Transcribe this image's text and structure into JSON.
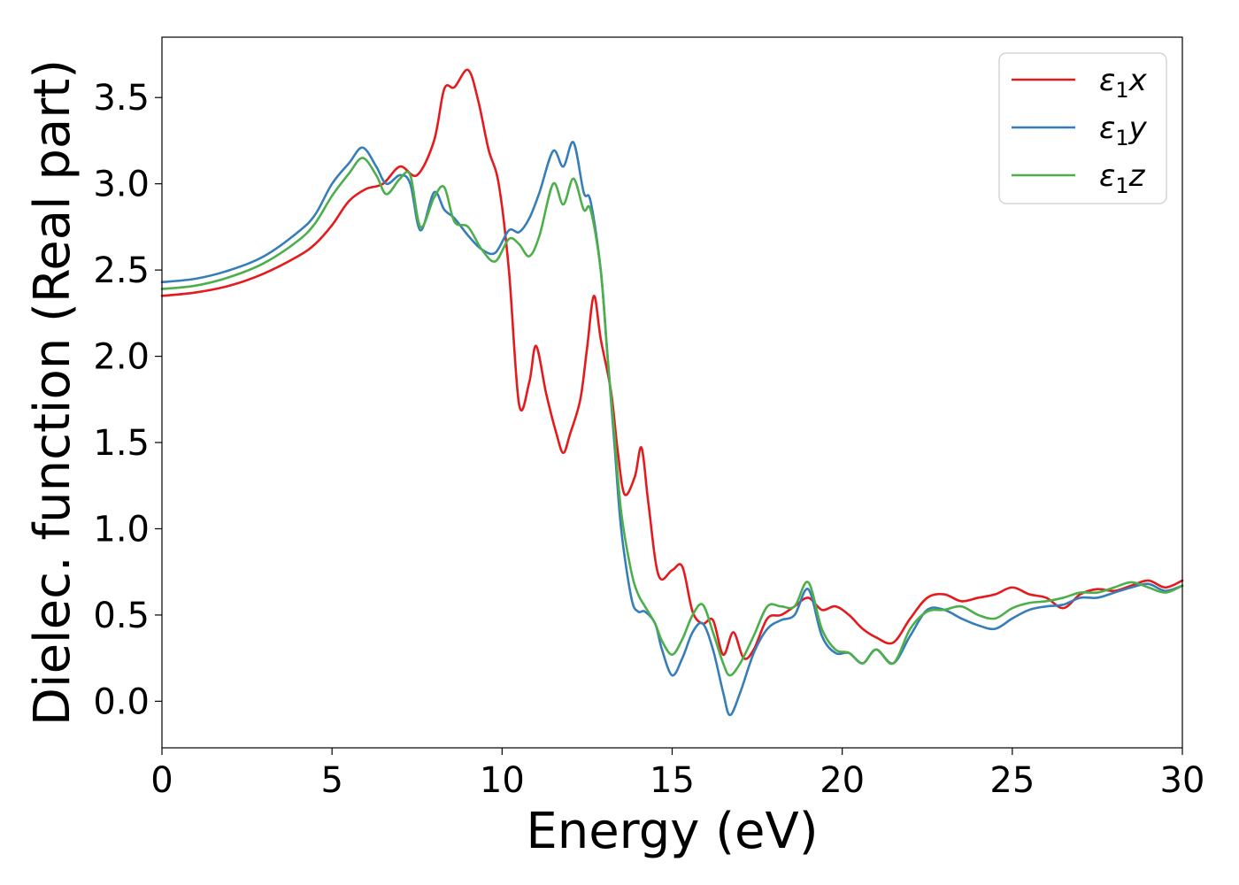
{
  "chart_data": {
    "type": "line",
    "title": "",
    "xlabel": "Energy (eV)",
    "ylabel": "Dielec. function (Real part)",
    "xlim": [
      0,
      30
    ],
    "ylim": [
      -0.27,
      3.85
    ],
    "xticks": [
      0,
      5,
      10,
      15,
      20,
      25,
      30
    ],
    "xtick_labels": [
      "0",
      "5",
      "10",
      "15",
      "20",
      "25",
      "30"
    ],
    "yticks": [
      0.0,
      0.5,
      1.0,
      1.5,
      2.0,
      2.5,
      3.0,
      3.5
    ],
    "ytick_labels": [
      "0.0",
      "0.5",
      "1.0",
      "1.5",
      "2.0",
      "2.5",
      "3.0",
      "3.5"
    ],
    "grid": false,
    "legend": {
      "position": "top-right"
    },
    "series": [
      {
        "name": "ε1x",
        "label_main": "ε",
        "label_sub": "1",
        "label_suffix": "x",
        "color": "#e41a1c",
        "x": [
          0,
          1,
          2,
          3,
          4,
          4.5,
          5,
          5.5,
          6,
          6.5,
          7,
          7.5,
          8,
          8.3,
          8.6,
          9,
          9.3,
          9.6,
          9.9,
          10.2,
          10.5,
          10.8,
          11,
          11.3,
          11.6,
          11.8,
          12,
          12.3,
          12.5,
          12.7,
          12.9,
          13.2,
          13.4,
          13.6,
          13.9,
          14.1,
          14.3,
          14.6,
          15,
          15.3,
          15.6,
          15.9,
          16.2,
          16.5,
          16.8,
          17.1,
          17.4,
          17.8,
          18.2,
          18.6,
          19,
          19.4,
          19.8,
          20.2,
          20.6,
          21,
          21.5,
          22,
          22.5,
          23,
          23.5,
          24,
          24.5,
          25,
          25.5,
          26,
          26.5,
          27,
          27.5,
          28,
          28.5,
          29,
          29.5,
          30
        ],
        "y": [
          2.35,
          2.37,
          2.41,
          2.48,
          2.58,
          2.65,
          2.76,
          2.9,
          2.97,
          3.0,
          3.1,
          3.05,
          3.25,
          3.55,
          3.56,
          3.66,
          3.48,
          3.2,
          3.0,
          2.5,
          1.72,
          1.85,
          2.06,
          1.78,
          1.55,
          1.44,
          1.55,
          1.75,
          2.05,
          2.35,
          2.1,
          1.8,
          1.45,
          1.2,
          1.3,
          1.47,
          1.15,
          0.73,
          0.76,
          0.78,
          0.52,
          0.45,
          0.47,
          0.27,
          0.4,
          0.25,
          0.3,
          0.48,
          0.5,
          0.55,
          0.6,
          0.53,
          0.55,
          0.5,
          0.42,
          0.37,
          0.34,
          0.48,
          0.6,
          0.62,
          0.58,
          0.6,
          0.62,
          0.66,
          0.62,
          0.6,
          0.54,
          0.62,
          0.65,
          0.64,
          0.67,
          0.7,
          0.66,
          0.7
        ]
      },
      {
        "name": "ε1y",
        "label_main": "ε",
        "label_sub": "1",
        "label_suffix": "y",
        "color": "#377eb8",
        "x": [
          0,
          1,
          2,
          3,
          4,
          4.5,
          5,
          5.5,
          5.9,
          6.3,
          6.6,
          7,
          7.3,
          7.6,
          8,
          8.3,
          8.6,
          9,
          9.4,
          9.8,
          10.2,
          10.5,
          10.8,
          11.1,
          11.5,
          11.8,
          12.1,
          12.4,
          12.6,
          12.9,
          13.1,
          13.3,
          13.5,
          13.8,
          14,
          14.2,
          14.5,
          14.7,
          15,
          15.3,
          15.6,
          15.9,
          16.2,
          16.5,
          16.7,
          17,
          17.4,
          17.8,
          18.2,
          18.6,
          19,
          19.4,
          19.8,
          20.2,
          20.6,
          21,
          21.5,
          22,
          22.5,
          23,
          23.5,
          24,
          24.5,
          25,
          25.5,
          26,
          26.5,
          27,
          27.5,
          28,
          28.5,
          29,
          29.5,
          30
        ],
        "y": [
          2.43,
          2.45,
          2.5,
          2.58,
          2.72,
          2.82,
          3.0,
          3.12,
          3.21,
          3.1,
          3.0,
          3.05,
          3.0,
          2.73,
          2.95,
          2.85,
          2.8,
          2.7,
          2.62,
          2.6,
          2.73,
          2.72,
          2.8,
          2.95,
          3.19,
          3.1,
          3.24,
          2.95,
          2.9,
          2.5,
          2.0,
          1.5,
          1.0,
          0.6,
          0.52,
          0.52,
          0.45,
          0.3,
          0.15,
          0.25,
          0.4,
          0.45,
          0.3,
          0.05,
          -0.08,
          0.05,
          0.28,
          0.42,
          0.47,
          0.5,
          0.65,
          0.38,
          0.28,
          0.28,
          0.22,
          0.3,
          0.22,
          0.38,
          0.53,
          0.53,
          0.48,
          0.44,
          0.42,
          0.48,
          0.53,
          0.55,
          0.56,
          0.6,
          0.6,
          0.63,
          0.66,
          0.68,
          0.64,
          0.67
        ]
      },
      {
        "name": "ε1z",
        "label_main": "ε",
        "label_sub": "1",
        "label_suffix": "z",
        "color": "#4daf4a",
        "x": [
          0,
          1,
          2,
          3,
          4,
          4.5,
          5,
          5.5,
          5.9,
          6.3,
          6.6,
          7,
          7.3,
          7.6,
          8,
          8.3,
          8.6,
          9,
          9.4,
          9.8,
          10.2,
          10.5,
          10.8,
          11.1,
          11.5,
          11.8,
          12.1,
          12.4,
          12.6,
          12.9,
          13.1,
          13.3,
          13.5,
          13.8,
          14,
          14.2,
          14.5,
          14.7,
          15,
          15.3,
          15.6,
          15.9,
          16.2,
          16.5,
          16.7,
          17,
          17.4,
          17.8,
          18.2,
          18.6,
          19,
          19.4,
          19.8,
          20.2,
          20.6,
          21,
          21.5,
          22,
          22.5,
          23,
          23.5,
          24,
          24.5,
          25,
          25.5,
          26,
          26.5,
          27,
          27.5,
          28,
          28.5,
          29,
          29.5,
          30
        ],
        "y": [
          2.39,
          2.41,
          2.46,
          2.54,
          2.67,
          2.77,
          2.93,
          3.06,
          3.15,
          3.05,
          2.94,
          3.03,
          3.05,
          2.75,
          2.92,
          2.98,
          2.78,
          2.75,
          2.62,
          2.55,
          2.68,
          2.65,
          2.58,
          2.7,
          3.0,
          2.88,
          3.03,
          2.85,
          2.85,
          2.5,
          2.0,
          1.55,
          1.1,
          0.75,
          0.62,
          0.55,
          0.45,
          0.35,
          0.27,
          0.36,
          0.5,
          0.56,
          0.4,
          0.22,
          0.15,
          0.22,
          0.38,
          0.55,
          0.55,
          0.55,
          0.69,
          0.42,
          0.3,
          0.28,
          0.22,
          0.3,
          0.22,
          0.42,
          0.52,
          0.53,
          0.55,
          0.5,
          0.48,
          0.54,
          0.57,
          0.58,
          0.6,
          0.63,
          0.63,
          0.66,
          0.69,
          0.66,
          0.63,
          0.67
        ]
      }
    ]
  }
}
